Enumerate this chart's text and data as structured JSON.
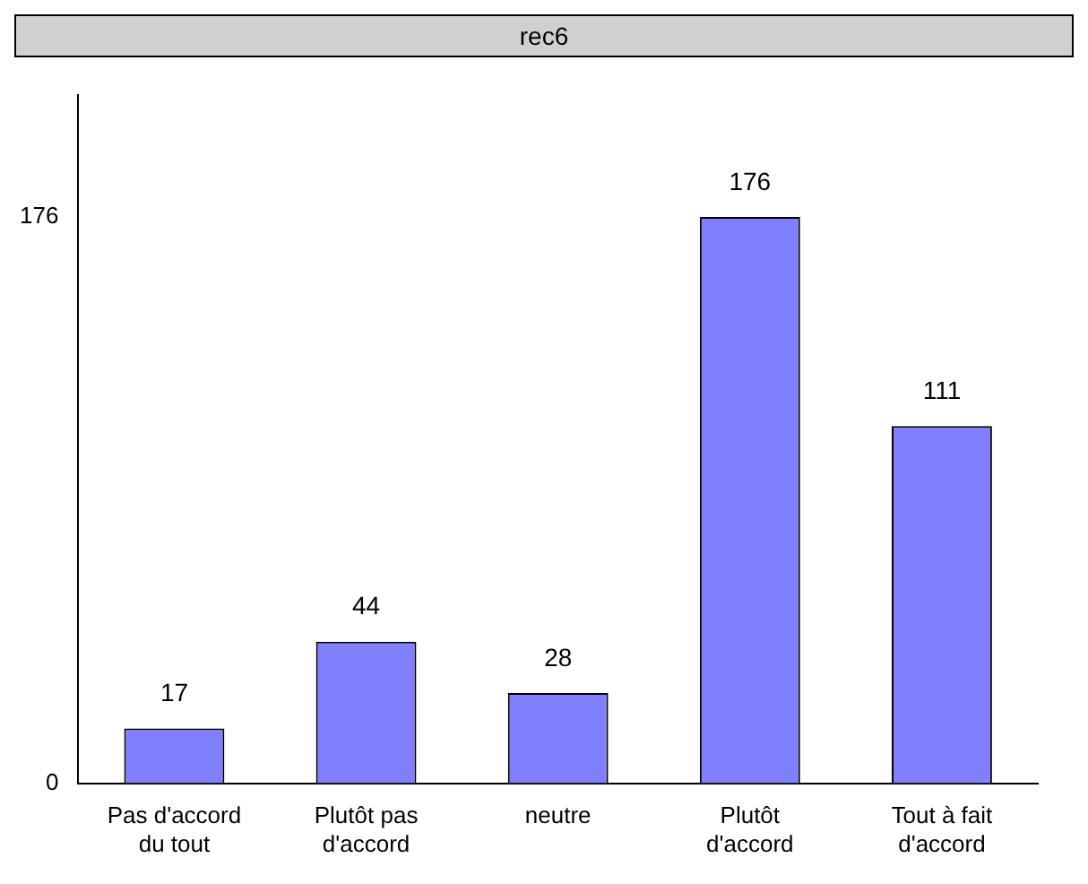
{
  "chart_data": {
    "type": "bar",
    "title": "rec6",
    "categories": [
      "Pas d'accord du tout",
      "Plutôt pas d'accord",
      "neutre",
      "Plutôt d'accord",
      "Tout à fait d'accord"
    ],
    "values": [
      17,
      44,
      28,
      176,
      111
    ],
    "color": "#8080ff",
    "ylim": [
      0,
      214
    ],
    "yticks": [
      0,
      176
    ],
    "data_labels": true,
    "grid": false,
    "legend": false
  }
}
